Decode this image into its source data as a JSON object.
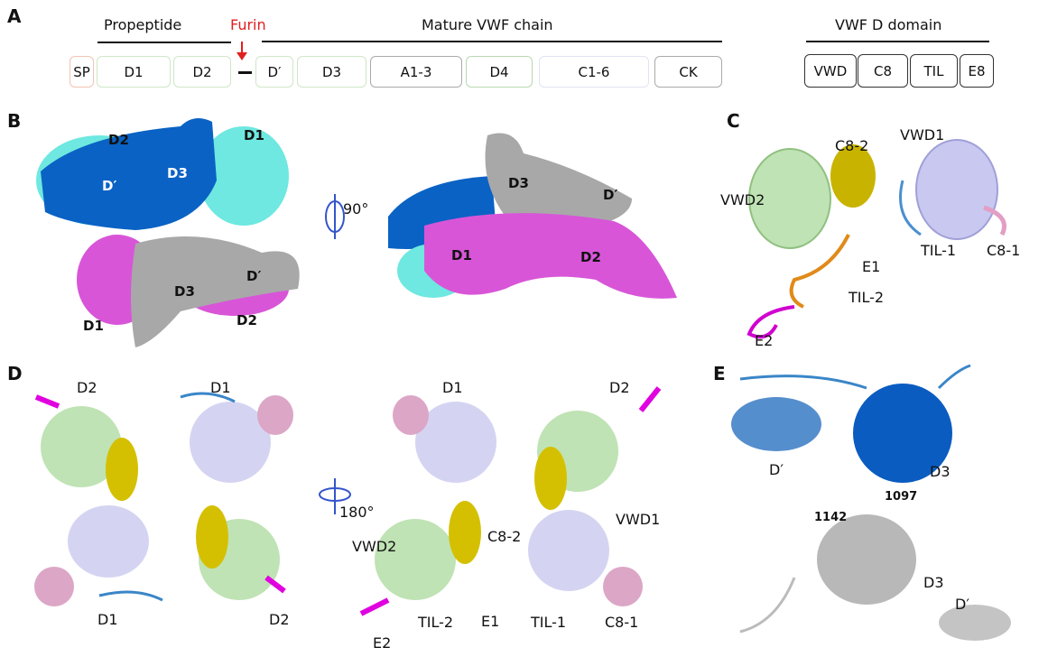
{
  "panels": {
    "a": "A",
    "b": "B",
    "c": "C",
    "d": "D",
    "e": "E"
  },
  "panel_a": {
    "propeptide": "Propeptide",
    "furin": "Furin",
    "mature": "Mature VWF chain",
    "domains": [
      "SP",
      "D1",
      "D2",
      "D′",
      "D3",
      "A1-3",
      "D4",
      "C1-6",
      "CK"
    ],
    "d_domain_title": "VWF D domain",
    "d_domain_parts": [
      "VWD",
      "C8",
      "TIL",
      "E8"
    ],
    "colors": {
      "furin": "#e02020",
      "sp": "#f2c4b4",
      "propeptide_domains": "#cfe6c8",
      "gray": "#aaaaaa"
    }
  },
  "panel_b": {
    "labels": [
      "D2",
      "D1",
      "D′",
      "D3",
      "D3",
      "D′",
      "D1",
      "D2",
      "D3",
      "D′",
      "D1",
      "D2"
    ],
    "rotation": "90°",
    "colors": {
      "d_prime_d3": "#0a62c4",
      "d1": "#6ee8e0",
      "d2_magenta": "#d855d8",
      "gray": "#a8a8a8"
    }
  },
  "panel_c": {
    "labels": [
      "C8-2",
      "VWD1",
      "VWD2",
      "TIL-1",
      "C8-1",
      "E1",
      "TIL-2",
      "E2"
    ]
  },
  "panel_d": {
    "labels_left": [
      "D2",
      "D1",
      "D1",
      "D2"
    ],
    "rotation": "180°",
    "labels_right": [
      "D1",
      "D2",
      "VWD2",
      "C8-2",
      "VWD1",
      "E2",
      "TIL-2",
      "E1",
      "TIL-1",
      "C8-1"
    ]
  },
  "panel_e": {
    "labels": [
      "D′",
      "D3",
      "1097",
      "1142",
      "D3",
      "D′"
    ]
  }
}
